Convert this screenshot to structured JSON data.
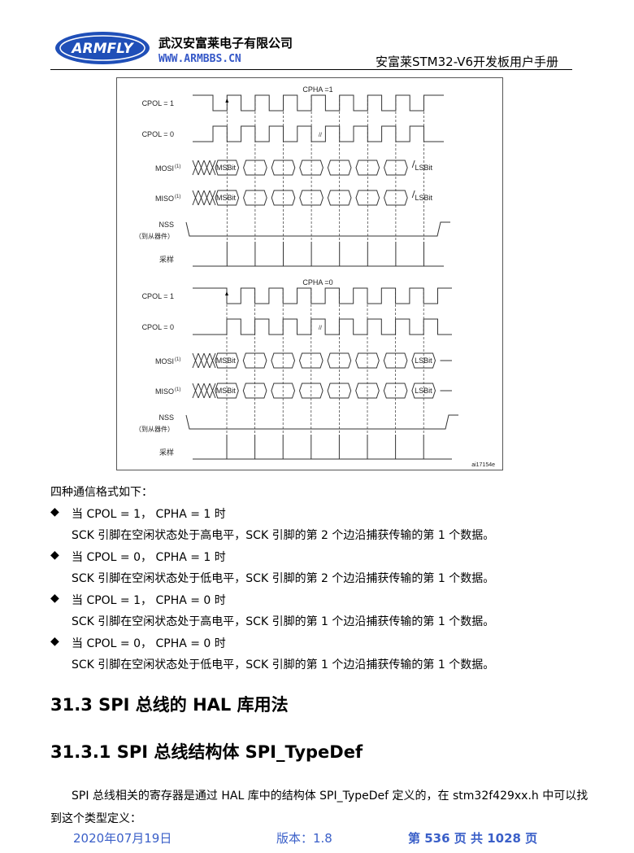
{
  "header": {
    "logo_text": "ARMFLY",
    "company": "武汉安富莱电子有限公司",
    "website": "WWW.ARMBBS.CN",
    "manual_title": "安富莱STM32-V6开发板用户手册"
  },
  "diagram": {
    "panels": [
      {
        "title": "CPHA =1",
        "cphase": 1
      },
      {
        "title": "CPHA =0",
        "cphase": 0
      }
    ],
    "labels": {
      "cpol1": "CPOL = 1",
      "cpol0": "CPOL = 0",
      "mosi": "MOSI",
      "miso": "MISO",
      "sup": "(1)",
      "nss": "NSS",
      "nss_sub": "（到从器件）",
      "sample": "采样",
      "msb": "MSBit",
      "lsb": "LSBit"
    },
    "figure_id": "ai17154e"
  },
  "body": {
    "intro": "四种通信格式如下：",
    "items": [
      {
        "title": "当 CPOL = 1， CPHA = 1 时",
        "desc": "SCK 引脚在空闲状态处于高电平，SCK 引脚的第 2 个边沿捕获传输的第 1 个数据。"
      },
      {
        "title": "当 CPOL = 0， CPHA = 1 时",
        "desc": "SCK 引脚在空闲状态处于低电平，SCK 引脚的第 2 个边沿捕获传输的第 1 个数据。"
      },
      {
        "title": "当 CPOL = 1， CPHA = 0 时",
        "desc": "SCK 引脚在空闲状态处于高电平，SCK 引脚的第 1 个边沿捕获传输的第 1 个数据。"
      },
      {
        "title": "当 CPOL = 0， CPHA = 0 时",
        "desc": "SCK 引脚在空闲状态处于低电平，SCK 引脚的第 1 个边沿捕获传输的第 1 个数据。"
      }
    ],
    "bullet": "◆",
    "h2": "31.3 SPI 总线的 HAL 库用法",
    "h3": "31.3.1 SPI 总线结构体 SPI_TypeDef",
    "para1": "SPI 总线相关的寄存器是通过 HAL 库中的结构体 SPI_TypeDef 定义的，在 stm32f429xx.h 中可以找",
    "para2": "到这个类型定义："
  },
  "footer": {
    "date": "2020年07月19日",
    "version": "版本：1.8",
    "page": "第 536 页 共 1028 页"
  }
}
